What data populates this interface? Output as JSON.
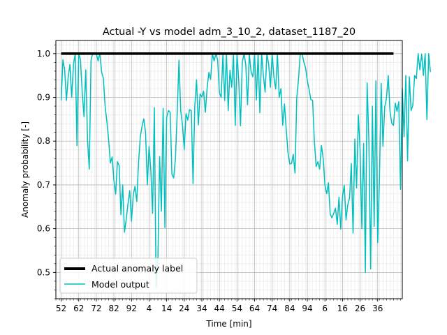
{
  "chart_data": {
    "type": "line",
    "title": "Actual -Y vs model adm_3_10_2, dataset_1187_20",
    "xlabel": "Time [min]",
    "ylabel": "Anomaly probability [-]",
    "x_tick_labels": [
      "52",
      "62",
      "72",
      "82",
      "92",
      "4",
      "14",
      "24",
      "34",
      "44",
      "54",
      "64",
      "74",
      "84",
      "94",
      "6",
      "16",
      "26",
      "36"
    ],
    "x_tick_index": [
      1,
      11,
      21,
      31,
      41,
      51,
      61,
      71,
      81,
      91,
      101,
      111,
      121,
      131,
      141,
      151,
      161,
      171,
      181
    ],
    "y_ticks": [
      0.5,
      0.6,
      0.7,
      0.8,
      0.9,
      1.0
    ],
    "y_tick_labels": [
      "0.5",
      "0.6",
      "0.7",
      "0.8",
      "0.9",
      "1.0"
    ],
    "xlim_index": [
      -2,
      195
    ],
    "ylim": [
      0.44,
      1.03
    ],
    "grid": "major+minor",
    "legend_position": "lower-left",
    "series": [
      {
        "name": "Actual anomaly label",
        "color": "#000000",
        "x_index": [
          1,
          190
        ],
        "values": [
          1.0,
          1.0
        ]
      },
      {
        "name": "Model output",
        "color": "#00bfbf",
        "x_index_start": 1,
        "values": [
          0.893,
          0.986,
          0.963,
          0.893,
          0.946,
          0.975,
          0.9,
          0.975,
          1.0,
          0.79,
          1.0,
          0.986,
          0.91,
          0.856,
          0.963,
          0.802,
          0.736,
          0.986,
          1.0,
          1.0,
          1.0,
          0.983,
          1.0,
          0.958,
          0.944,
          0.88,
          0.845,
          0.803,
          0.75,
          0.764,
          0.71,
          0.679,
          0.753,
          0.744,
          0.632,
          0.7,
          0.592,
          0.621,
          0.656,
          0.687,
          0.617,
          0.677,
          0.697,
          0.662,
          0.75,
          0.809,
          0.834,
          0.851,
          0.82,
          0.7,
          0.788,
          0.733,
          0.635,
          0.877,
          0.465,
          0.525,
          0.765,
          0.64,
          0.875,
          0.602,
          0.854,
          0.87,
          0.866,
          0.724,
          0.716,
          0.76,
          0.865,
          0.985,
          0.87,
          0.837,
          0.781,
          0.863,
          0.848,
          0.872,
          0.87,
          0.703,
          0.879,
          0.94,
          0.837,
          0.908,
          0.901,
          0.914,
          0.866,
          0.921,
          0.957,
          0.941,
          1.0,
          0.983,
          1.0,
          0.985,
          0.911,
          0.9,
          1.0,
          0.893,
          1.0,
          0.87,
          0.962,
          0.923,
          1.0,
          0.836,
          1.0,
          0.937,
          0.835,
          0.98,
          1.0,
          0.974,
          0.883,
          1.0,
          0.959,
          0.947,
          1.0,
          0.894,
          1.0,
          0.865,
          1.0,
          0.95,
          0.912,
          1.0,
          0.976,
          0.923,
          1.0,
          0.946,
          0.919,
          1.0,
          0.9,
          0.92,
          0.836,
          0.885,
          0.826,
          0.773,
          0.748,
          0.749,
          0.77,
          0.727,
          0.9,
          0.943,
          1.0,
          1.0,
          0.981,
          0.967,
          0.938,
          0.918,
          0.895,
          0.893,
          0.8,
          0.742,
          0.753,
          0.736,
          0.79,
          0.761,
          0.7,
          0.68,
          0.705,
          0.633,
          0.625,
          0.635,
          0.647,
          0.61,
          0.672,
          0.599,
          0.674,
          0.699,
          0.62,
          0.655,
          0.67,
          0.749,
          0.59,
          0.805,
          0.693,
          0.86,
          0.78,
          0.6,
          0.795,
          0.5,
          0.933,
          0.8,
          0.508,
          0.88,
          0.605,
          0.938,
          0.568,
          0.712,
          0.932,
          0.788,
          0.878,
          0.898,
          0.95,
          0.868,
          0.841,
          0.836,
          0.887,
          0.868,
          0.89,
          0.69,
          0.92,
          0.81,
          0.95,
          0.755,
          0.947,
          0.87,
          0.882,
          0.95,
          0.943,
          1.0,
          0.963,
          0.999,
          0.95,
          1.0,
          0.849,
          1.0,
          0.958
        ]
      }
    ]
  }
}
